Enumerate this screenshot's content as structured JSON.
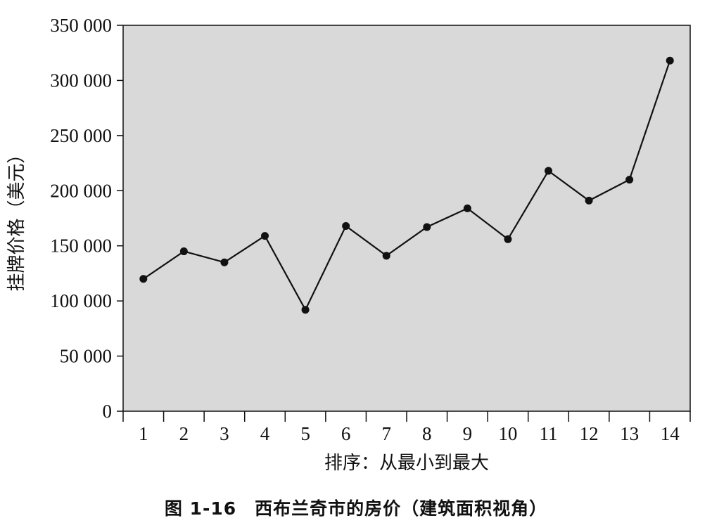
{
  "caption": "图 1-16　西布兰奇市的房价（建筑面积视角）",
  "colors": {
    "plot_background": "#d9d9d9",
    "line": "#111111",
    "marker": "#111111",
    "axis": "#111111"
  },
  "chart_data": {
    "type": "line",
    "title": "",
    "xlabel": "排序：从最小到最大",
    "ylabel": "挂牌价格（美元）",
    "categories": [
      "1",
      "2",
      "3",
      "4",
      "5",
      "6",
      "7",
      "8",
      "9",
      "10",
      "11",
      "12",
      "13",
      "14"
    ],
    "y_ticks": [
      0,
      50000,
      100000,
      150000,
      200000,
      250000,
      300000,
      350000
    ],
    "y_tick_labels": [
      "0",
      "50 000",
      "100 000",
      "150 000",
      "200 000",
      "250 000",
      "300 000",
      "350 000"
    ],
    "ylim": [
      0,
      350000
    ],
    "grid": false,
    "series": [
      {
        "values": [
          120000,
          145000,
          135000,
          159000,
          92000,
          168000,
          141000,
          167000,
          184000,
          156000,
          218000,
          191000,
          210000,
          318000
        ]
      }
    ]
  }
}
